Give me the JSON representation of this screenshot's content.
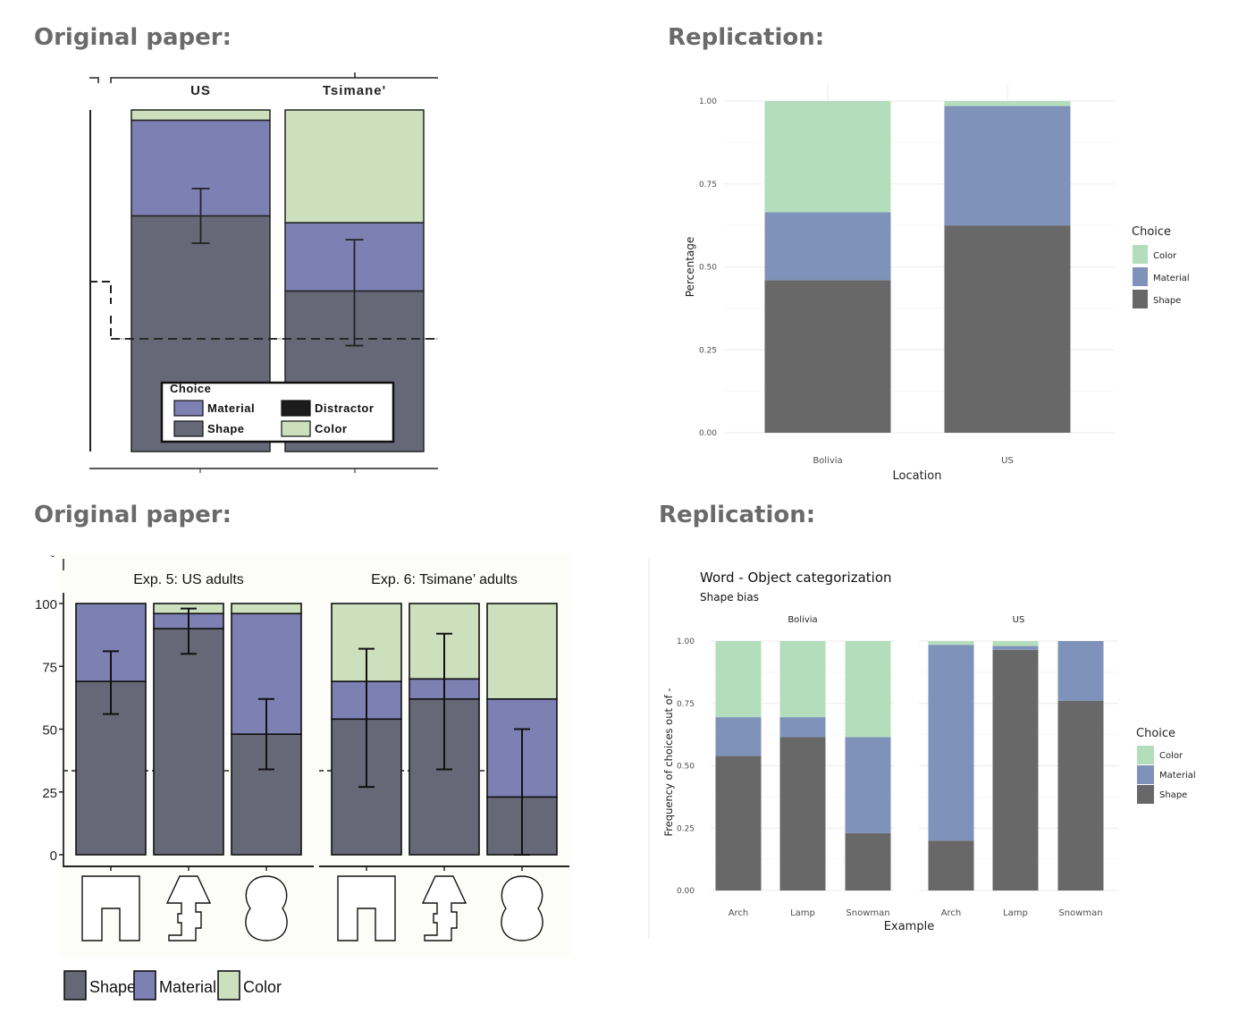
{
  "headings": {
    "top_left": "Original paper:",
    "top_right": "Replication:",
    "bottom_left": "Original paper:",
    "bottom_right": "Replication:"
  },
  "colors": {
    "shape_original": "#676877",
    "material_original": "#7d80b3",
    "color_original": "#cce0bd",
    "distractor_original": "#1c1c1c",
    "shape_replication": "#686868",
    "material_replication": "#7f92ba",
    "color_replication": "#b3ddbb"
  },
  "chart_data": [
    {
      "id": "original_1",
      "type": "bar",
      "stacked": true,
      "categories": [
        "US",
        "Tsimane'"
      ],
      "series": [
        {
          "name": "Shape",
          "values": [
            69,
            47
          ]
        },
        {
          "name": "Material",
          "values": [
            28,
            20
          ]
        },
        {
          "name": "Color",
          "values": [
            3,
            33
          ]
        }
      ],
      "error_bars": [
        {
          "low": 61,
          "high": 77
        },
        {
          "low": 31,
          "high": 62
        }
      ],
      "chance_line": 33,
      "ylim": [
        0,
        100
      ],
      "legend": {
        "title": "Choice",
        "entries": [
          "Material",
          "Distractor",
          "Shape",
          "Color"
        ],
        "placement": "inside-bottom"
      }
    },
    {
      "id": "replication_1",
      "type": "bar",
      "stacked": true,
      "categories": [
        "Bolivia",
        "US"
      ],
      "series": [
        {
          "name": "Shape",
          "values": [
            0.46,
            0.625
          ]
        },
        {
          "name": "Material",
          "values": [
            0.205,
            0.36
          ]
        },
        {
          "name": "Color",
          "values": [
            0.335,
            0.015
          ]
        }
      ],
      "xlabel": "Location",
      "ylabel": "Percentage",
      "ylim": [
        0,
        1
      ],
      "yticks": [
        "0.00",
        "0.25",
        "0.50",
        "0.75",
        "1.00"
      ],
      "legend": {
        "title": "Choice",
        "entries": [
          "Color",
          "Material",
          "Shape"
        ],
        "placement": "right"
      }
    },
    {
      "id": "original_2",
      "type": "bar",
      "stacked": true,
      "panels": [
        {
          "title": "Exp. 5: US adults",
          "stimuli": [
            "arch",
            "lamp",
            "snowman"
          ]
        },
        {
          "title": "Exp. 6: Tsimane’ adults",
          "stimuli": [
            "arch",
            "lamp",
            "snowman"
          ]
        }
      ],
      "series": [
        {
          "name": "Shape",
          "values": [
            69,
            90,
            48,
            54,
            62,
            23
          ]
        },
        {
          "name": "Material",
          "values": [
            31,
            6,
            48,
            15,
            8,
            39
          ]
        },
        {
          "name": "Color",
          "values": [
            0,
            4,
            4,
            31,
            30,
            38
          ]
        }
      ],
      "error_bars": [
        {
          "low": 56,
          "high": 81
        },
        {
          "low": 80,
          "high": 98
        },
        {
          "low": 34,
          "high": 62
        },
        {
          "low": 27,
          "high": 82
        },
        {
          "low": 34,
          "high": 88
        },
        {
          "low": 0,
          "high": 50
        }
      ],
      "chance_line": 33,
      "ylim": [
        0,
        100
      ],
      "yticks": [
        "0",
        "25",
        "50",
        "75",
        "100"
      ],
      "legend": {
        "entries": [
          "Shape",
          "Material",
          "Color"
        ],
        "placement": "bottom"
      }
    },
    {
      "id": "replication_2",
      "type": "bar",
      "stacked": true,
      "title": "Word - Object categorization",
      "subtitle": "Shape bias",
      "facets": [
        {
          "name": "Bolivia",
          "categories": [
            "Arch",
            "Lamp",
            "Snowman"
          ]
        },
        {
          "name": "US",
          "categories": [
            "Arch",
            "Lamp",
            "Snowman"
          ]
        }
      ],
      "series": [
        {
          "name": "Shape",
          "values": [
            0.54,
            0.615,
            0.23,
            0.2,
            0.965,
            0.76
          ]
        },
        {
          "name": "Material",
          "values": [
            0.155,
            0.08,
            0.385,
            0.785,
            0.015,
            0.24
          ]
        },
        {
          "name": "Color",
          "values": [
            0.305,
            0.305,
            0.385,
            0.015,
            0.02,
            0
          ]
        }
      ],
      "xlabel": "Example",
      "ylabel": "Frequency of choices out of -",
      "ylim": [
        0,
        1
      ],
      "yticks": [
        "0.00",
        "0.25",
        "0.50",
        "0.75",
        "1.00"
      ],
      "legend": {
        "title": "Choice",
        "entries": [
          "Color",
          "Material",
          "Shape"
        ],
        "placement": "right"
      }
    }
  ]
}
